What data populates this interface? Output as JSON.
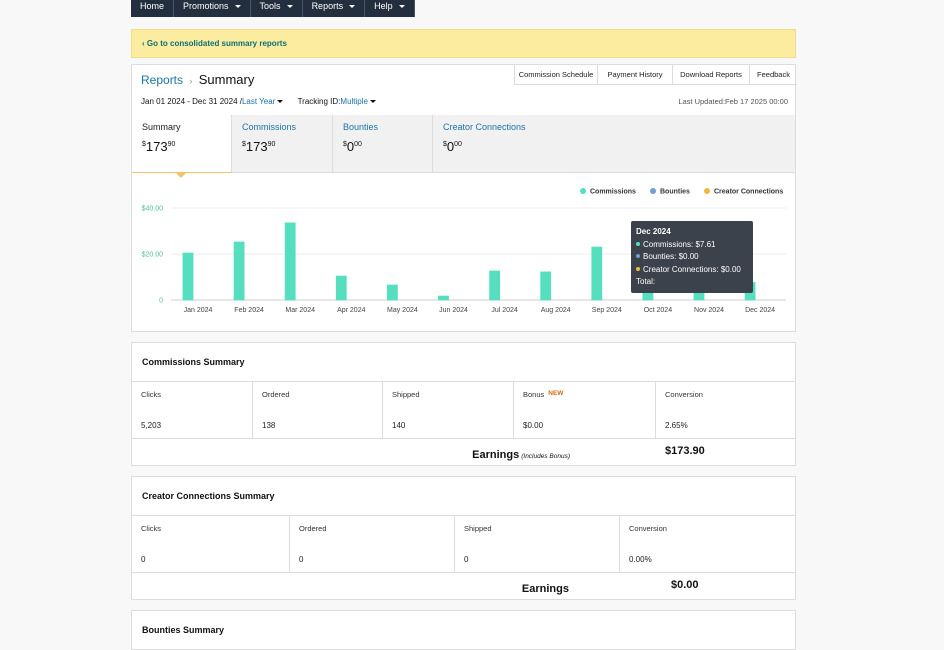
{
  "nav": [
    "Home",
    "Promotions",
    "Tools",
    "Reports",
    "Help"
  ],
  "banner": "‹ Go to consolidated summary reports",
  "header": {
    "breadcrumb": "Reports",
    "separator": "›",
    "title": "Summary",
    "buttons": [
      "Commission Schedule",
      "Payment History",
      "Download Reports",
      "Feedback"
    ]
  },
  "filters": {
    "date_range": "Jan 01 2024 - Dec 31 2024 /",
    "period": "Last Year",
    "tracking_label": "Tracking ID:",
    "tracking_value": "Multiple",
    "last_updated": "Last Updated:Feb 17 2025 00:00"
  },
  "tabs": [
    {
      "label": "Summary",
      "currency": "$",
      "dollars": "173",
      "cents": "90"
    },
    {
      "label": "Commissions",
      "currency": "$",
      "dollars": "173",
      "cents": "90"
    },
    {
      "label": "Bounties",
      "currency": "$",
      "dollars": "0",
      "cents": "00"
    },
    {
      "label": "Creator Connections",
      "currency": "$",
      "dollars": "0",
      "cents": "00"
    }
  ],
  "chart_data": {
    "type": "bar",
    "categories": [
      "Jan 2024",
      "Feb 2024",
      "Mar 2024",
      "Apr 2024",
      "May 2024",
      "Jun 2024",
      "Jul 2024",
      "Aug 2024",
      "Sep 2024",
      "Oct 2024",
      "Nov 2024",
      "Dec 2024"
    ],
    "series": [
      {
        "name": "Commissions",
        "color": "#55dfbf",
        "values": [
          20.4,
          25.2,
          33.5,
          10.4,
          6.5,
          1.7,
          12.6,
          12.2,
          23.0,
          10.4,
          10.4,
          7.61
        ]
      },
      {
        "name": "Bounties",
        "color": "#6f9fd8",
        "values": [
          0,
          0,
          0,
          0,
          0,
          0,
          0,
          0,
          0,
          0,
          0,
          0
        ]
      },
      {
        "name": "Creator Connections",
        "color": "#f0b83c",
        "values": [
          0,
          0,
          0,
          0,
          0,
          0,
          0,
          0,
          0,
          0,
          0,
          0
        ]
      }
    ],
    "ylim": [
      0,
      40
    ],
    "yticks": [
      0,
      {
        "value": 20,
        "label": "$20.00"
      },
      {
        "value": 40,
        "label": "$40.00"
      }
    ],
    "grid": true,
    "legend": "top-right"
  },
  "tooltip": {
    "title": "Dec 2024",
    "lines": [
      "Commissions: $7.61",
      "Bounties: $0.00",
      "Creator Connections: $0.00"
    ],
    "total": "Total:"
  },
  "commissions_summary": {
    "title": "Commissions Summary",
    "columns": [
      "Clicks",
      "Ordered",
      "Shipped",
      "Bonus",
      "Conversion"
    ],
    "badge": "NEW",
    "values": [
      "5,203",
      "138",
      "140",
      "$0.00",
      "2.65%"
    ],
    "earnings_label": "Earnings",
    "earnings_note": "(Includes Bonus)",
    "earnings": "$173.90"
  },
  "creator_summary": {
    "title": "Creator Connections Summary",
    "columns": [
      "Clicks",
      "Ordered",
      "Shipped",
      "Conversion"
    ],
    "values": [
      "0",
      "0",
      "0",
      "0.00%"
    ],
    "earnings_label": "Earnings",
    "earnings": "$0.00"
  },
  "bounties_summary": {
    "title": "Bounties Summary"
  }
}
